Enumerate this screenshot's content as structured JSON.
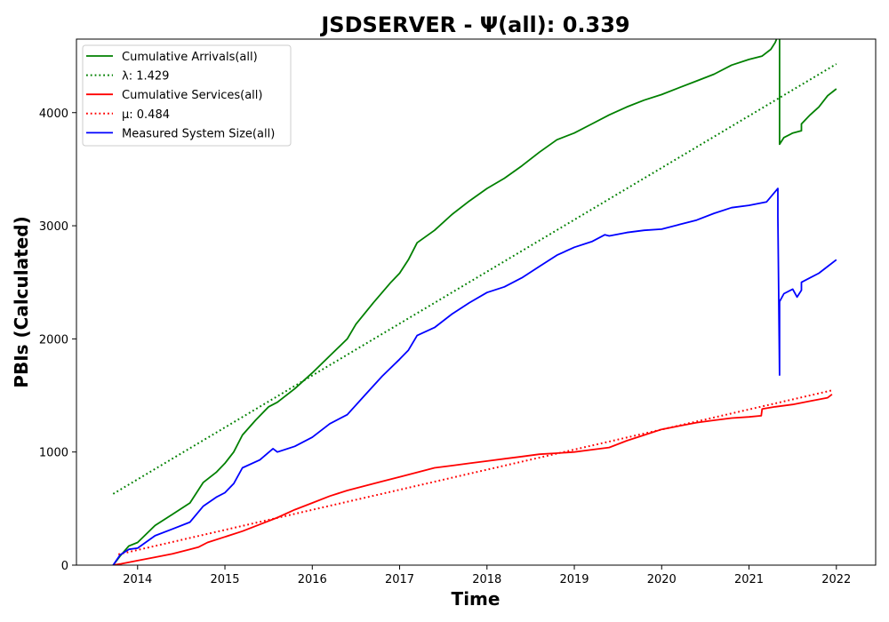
{
  "chart_data": {
    "type": "line",
    "title": "JSDSERVER -  Ψ(all): 0.339",
    "xlabel": "Time",
    "ylabel": "PBIs (Calculated)",
    "xlim": [
      2013.3,
      2022.45
    ],
    "ylim": [
      0,
      4650
    ],
    "xticks": [
      2014,
      2015,
      2016,
      2017,
      2018,
      2019,
      2020,
      2021,
      2022
    ],
    "xtick_labels": [
      "2014",
      "2015",
      "2016",
      "2017",
      "2018",
      "2019",
      "2020",
      "2021",
      "2022"
    ],
    "yticks": [
      0,
      1000,
      2000,
      3000,
      4000
    ],
    "ytick_labels": [
      "0",
      "1000",
      "2000",
      "3000",
      "4000"
    ],
    "legend_position": "upper-left",
    "colors": {
      "arrivals": "#008000",
      "services": "#ff0000",
      "system_size": "#0000ff"
    },
    "series": [
      {
        "name": "Cumulative Arrivals(all)",
        "legend_label": "Cumulative Arrivals(all)",
        "style": "solid",
        "color": "#008000",
        "x": [
          2013.72,
          2013.8,
          2013.9,
          2014.0,
          2014.2,
          2014.4,
          2014.6,
          2014.75,
          2014.9,
          2015.0,
          2015.1,
          2015.2,
          2015.35,
          2015.5,
          2015.6,
          2015.8,
          2016.0,
          2016.2,
          2016.4,
          2016.5,
          2016.7,
          2016.9,
          2017.0,
          2017.1,
          2017.2,
          2017.4,
          2017.6,
          2017.8,
          2018.0,
          2018.2,
          2018.4,
          2018.6,
          2018.8,
          2019.0,
          2019.2,
          2019.4,
          2019.6,
          2019.8,
          2020.0,
          2020.2,
          2020.4,
          2020.6,
          2020.8,
          2021.0,
          2021.15,
          2021.25,
          2021.3,
          2021.33,
          2021.33,
          2021.35,
          2021.35,
          2021.4,
          2021.5,
          2021.6,
          2021.6,
          2021.7,
          2021.8,
          2021.9,
          2022.0
        ],
        "y": [
          0,
          80,
          170,
          200,
          350,
          450,
          550,
          730,
          820,
          900,
          1000,
          1150,
          1280,
          1400,
          1440,
          1560,
          1700,
          1850,
          2000,
          2130,
          2320,
          2500,
          2580,
          2700,
          2850,
          2960,
          3100,
          3220,
          3330,
          3420,
          3530,
          3650,
          3760,
          3820,
          3900,
          3980,
          4050,
          4110,
          4160,
          4220,
          4280,
          4340,
          4420,
          4470,
          4500,
          4560,
          4620,
          4680,
          4680,
          4650,
          3720,
          3780,
          3820,
          3840,
          3900,
          3980,
          4050,
          4150,
          4210
        ]
      },
      {
        "name": "lambda",
        "legend_label": "λ: 1.429",
        "style": "dotted",
        "color": "#008000",
        "x": [
          2013.72,
          2022.0
        ],
        "y": [
          630,
          4430
        ]
      },
      {
        "name": "Cumulative Services(all)",
        "legend_label": "Cumulative Services(all)",
        "style": "solid",
        "color": "#ff0000",
        "x": [
          2013.72,
          2013.8,
          2014.0,
          2014.2,
          2014.4,
          2014.6,
          2014.7,
          2014.8,
          2015.0,
          2015.2,
          2015.4,
          2015.6,
          2015.8,
          2016.0,
          2016.2,
          2016.4,
          2016.6,
          2016.8,
          2017.0,
          2017.2,
          2017.4,
          2017.6,
          2017.8,
          2018.0,
          2018.2,
          2018.4,
          2018.6,
          2018.8,
          2019.0,
          2019.2,
          2019.4,
          2019.6,
          2019.8,
          2020.0,
          2020.2,
          2020.4,
          2020.6,
          2020.8,
          2021.0,
          2021.14,
          2021.15,
          2021.3,
          2021.5,
          2021.7,
          2021.9,
          2021.95
        ],
        "y": [
          0,
          10,
          40,
          70,
          100,
          140,
          160,
          200,
          250,
          300,
          360,
          420,
          490,
          550,
          610,
          660,
          700,
          740,
          780,
          820,
          860,
          880,
          900,
          920,
          940,
          960,
          980,
          990,
          1000,
          1020,
          1040,
          1100,
          1150,
          1200,
          1230,
          1260,
          1280,
          1300,
          1310,
          1320,
          1380,
          1400,
          1420,
          1450,
          1480,
          1510
        ]
      },
      {
        "name": "mu",
        "legend_label": "μ: 0.484",
        "style": "dotted",
        "color": "#ff0000",
        "x": [
          2013.78,
          2021.95
        ],
        "y": [
          95,
          1545
        ]
      },
      {
        "name": "Measured System Size(all)",
        "legend_label": "Measured System Size(all)",
        "style": "solid",
        "color": "#0000ff",
        "x": [
          2013.72,
          2013.8,
          2013.9,
          2014.0,
          2014.2,
          2014.4,
          2014.6,
          2014.75,
          2014.9,
          2015.0,
          2015.1,
          2015.2,
          2015.4,
          2015.55,
          2015.6,
          2015.8,
          2016.0,
          2016.2,
          2016.4,
          2016.6,
          2016.8,
          2017.0,
          2017.1,
          2017.2,
          2017.4,
          2017.6,
          2017.8,
          2018.0,
          2018.2,
          2018.4,
          2018.6,
          2018.8,
          2019.0,
          2019.2,
          2019.35,
          2019.4,
          2019.6,
          2019.8,
          2020.0,
          2020.2,
          2020.4,
          2020.6,
          2020.8,
          2021.0,
          2021.2,
          2021.33,
          2021.33,
          2021.35,
          2021.35,
          2021.4,
          2021.5,
          2021.55,
          2021.6,
          2021.6,
          2021.7,
          2021.8,
          2021.9,
          2022.0
        ],
        "y": [
          0,
          90,
          140,
          150,
          260,
          320,
          380,
          520,
          600,
          640,
          720,
          860,
          930,
          1030,
          1000,
          1050,
          1130,
          1250,
          1330,
          1500,
          1670,
          1820,
          1900,
          2030,
          2100,
          2220,
          2320,
          2410,
          2460,
          2540,
          2640,
          2740,
          2810,
          2860,
          2920,
          2910,
          2940,
          2960,
          2970,
          3010,
          3050,
          3110,
          3160,
          3180,
          3210,
          3330,
          3080,
          1680,
          2330,
          2400,
          2440,
          2370,
          2430,
          2500,
          2540,
          2580,
          2640,
          2700
        ]
      }
    ]
  }
}
